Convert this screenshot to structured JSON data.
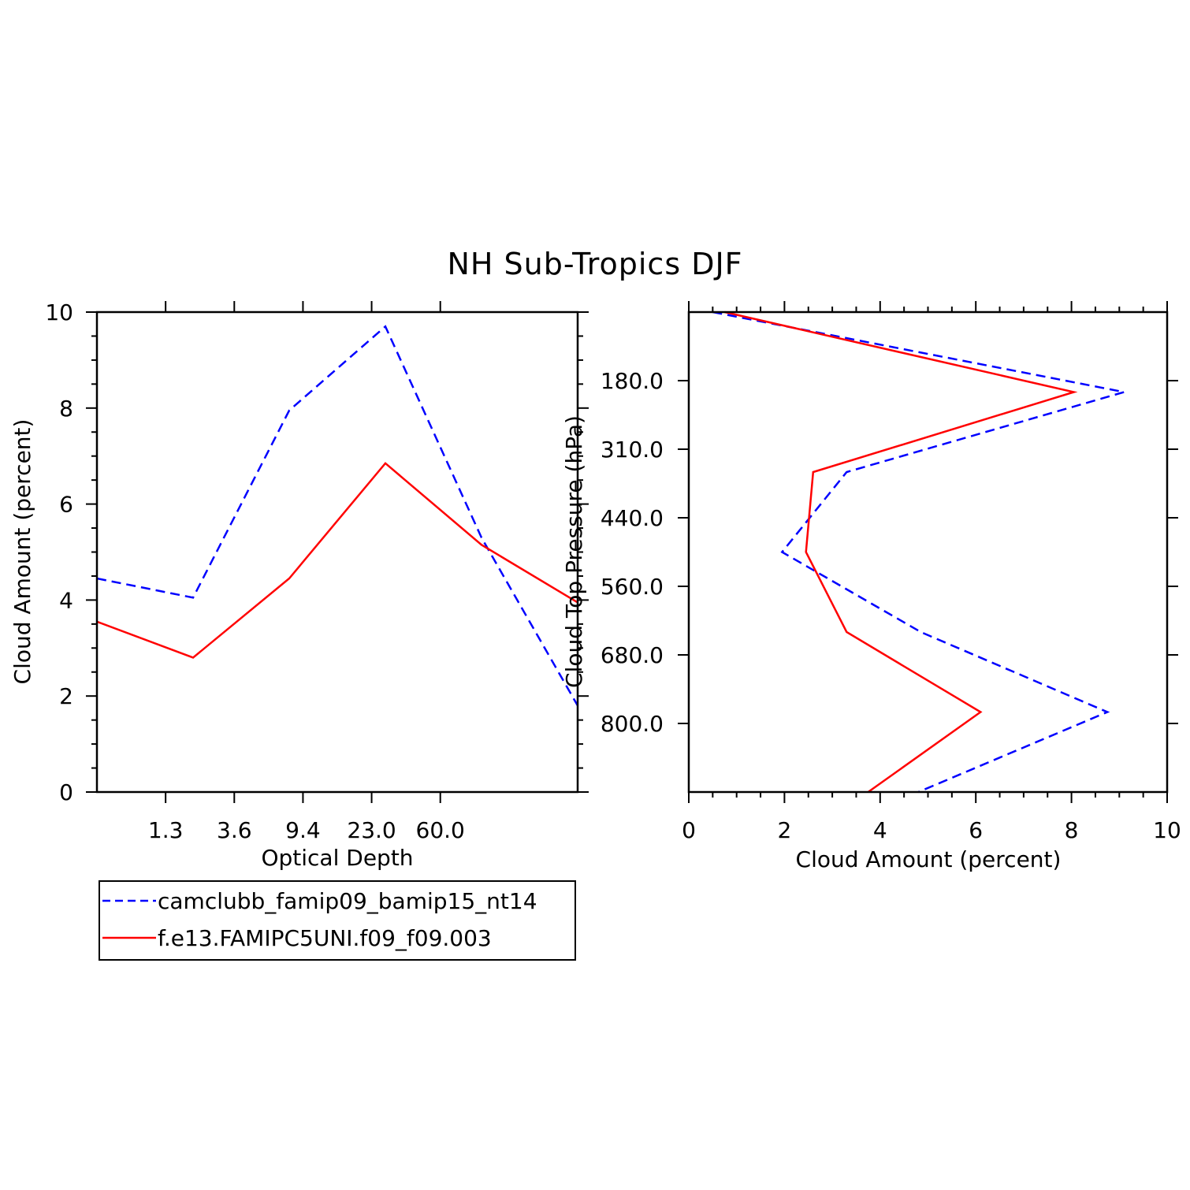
{
  "title": "NH Sub-Tropics DJF",
  "colors": {
    "series1": "#0000ff",
    "series2": "#ff0000",
    "axis": "#000000"
  },
  "legend": {
    "placement": "below-left-panel",
    "entries": [
      {
        "label": "camclubb_famip09_bamip15_nt14",
        "style": "dashed",
        "color": "#0000ff"
      },
      {
        "label": "f.e13.FAMIPC5UNI.f09_f09.003",
        "style": "solid",
        "color": "#ff0000"
      }
    ]
  },
  "chart_data": [
    {
      "type": "line",
      "xlabel": "Optical Depth",
      "ylabel": "Cloud Amount (percent)",
      "x_tick_labels": [
        "1.3",
        "3.6",
        "9.4",
        "23.0",
        "60.0"
      ],
      "x_bin_count": 7,
      "y_ticks": [
        0,
        2,
        4,
        6,
        8,
        10
      ],
      "ylim": [
        0,
        10
      ],
      "series": [
        {
          "name": "camclubb_famip09_bamip15_nt14",
          "style": "dashed",
          "values": [
            4.45,
            4.05,
            7.95,
            9.7,
            5.3,
            1.8
          ]
        },
        {
          "name": "f.e13.FAMIPC5UNI.f09_f09.003",
          "style": "solid",
          "values": [
            3.55,
            2.8,
            4.45,
            6.85,
            5.15,
            3.95
          ]
        }
      ]
    },
    {
      "type": "line",
      "orientation": "horizontal",
      "xlabel": "Cloud Amount (percent)",
      "ylabel": "Cloud Top Pressure (hPa)",
      "x_ticks": [
        0,
        2,
        4,
        6,
        8,
        10
      ],
      "xlim": [
        0,
        10
      ],
      "y_tick_labels": [
        "180.0",
        "310.0",
        "440.0",
        "560.0",
        "680.0",
        "800.0"
      ],
      "y_bin_count": 7,
      "series": [
        {
          "name": "camclubb_famip09_bamip15_nt14",
          "style": "dashed",
          "values": [
            0.5,
            9.1,
            3.3,
            1.95,
            4.85,
            8.75,
            4.8
          ]
        },
        {
          "name": "f.e13.FAMIPC5UNI.f09_f09.003",
          "style": "solid",
          "values": [
            0.75,
            8.05,
            2.6,
            2.45,
            3.3,
            6.1,
            3.75
          ]
        }
      ]
    }
  ]
}
